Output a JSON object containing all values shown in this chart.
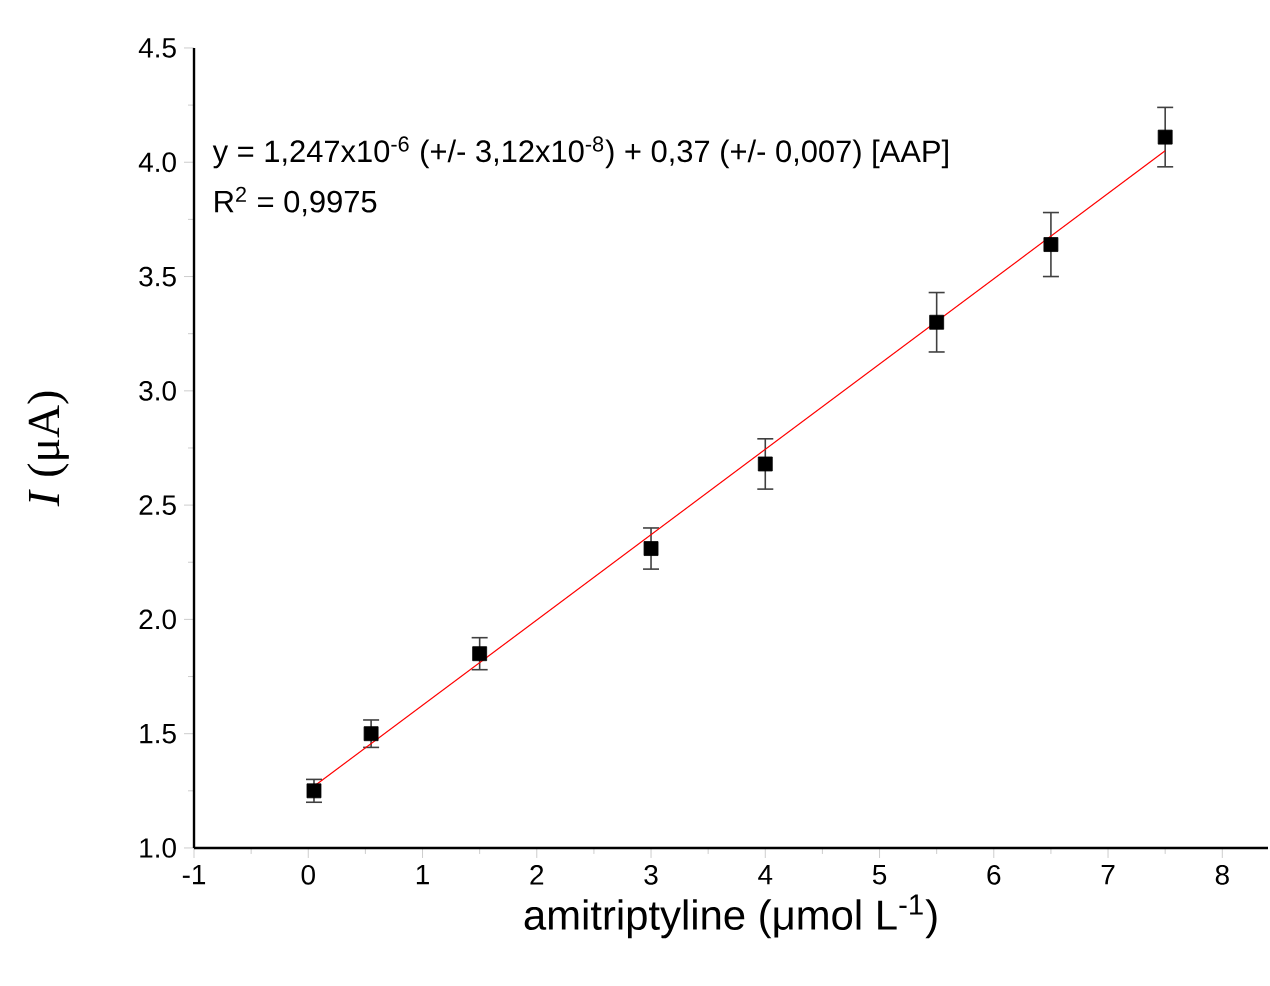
{
  "chart_data": {
    "type": "scatter",
    "xlabel": "amitriptyline (μmol L$^{-1}$)",
    "ylabel": "*I* (μA)",
    "x": [
      0.05,
      0.55,
      1.5,
      3,
      4,
      5.5,
      6.5,
      7.5
    ],
    "series": [
      {
        "color": "#000000",
        "values": [
          1.25,
          1.5,
          1.85,
          2.31,
          2.68,
          3.3,
          3.64,
          4.11
        ],
        "errors": [
          0.05,
          0.06,
          0.07,
          0.09,
          0.11,
          0.13,
          0.14,
          0.13
        ]
      },
      {
        "type": "line",
        "color": "#ff0000",
        "marker": "none",
        "x": [
          0.05,
          7.5
        ],
        "values": [
          1.27,
          4.05
        ]
      }
    ],
    "annotations": [
      "y = 1,247x10$^{-6}$ (+/- 3,12x10$^{-8}$) + 0,37 (+/- 0,007) [AAP]",
      "R$^{2}$ = 0,9975"
    ],
    "xlim": [
      -1,
      8.4
    ],
    "ylim": [
      1,
      4.5
    ],
    "xticks": [
      -1,
      0,
      1,
      2,
      3,
      4,
      5,
      6,
      7,
      8
    ],
    "yticks": [
      {
        "value": 1,
        "label": "1.0"
      },
      1.5,
      {
        "value": 2,
        "label": "2.0"
      },
      2.5,
      {
        "value": 3,
        "label": "3.0"
      },
      3.5,
      {
        "value": 4,
        "label": "4.0"
      },
      4.5
    ],
    "marker": "square"
  }
}
